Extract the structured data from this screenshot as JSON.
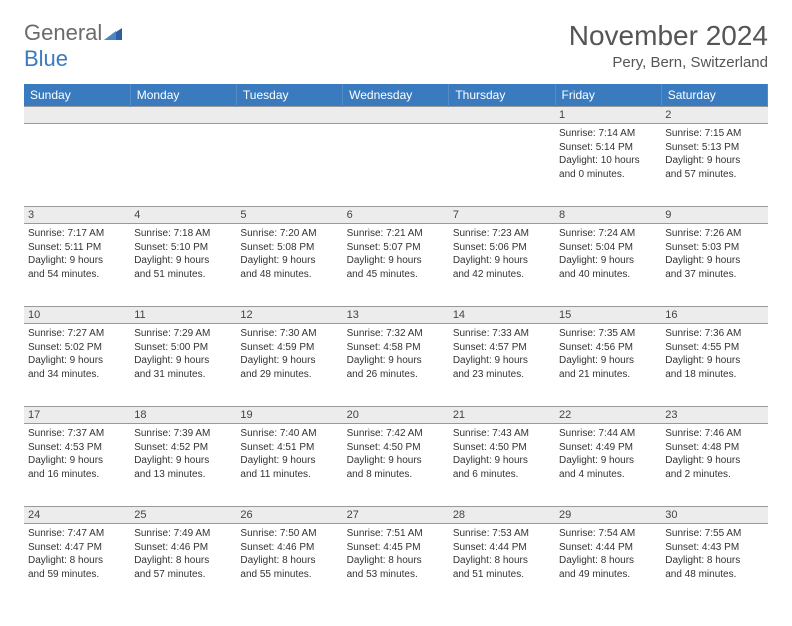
{
  "logo": {
    "word1": "General",
    "word2": "Blue"
  },
  "title": "November 2024",
  "location": "Pery, Bern, Switzerland",
  "colors": {
    "header_bg": "#3a7bbf",
    "header_fg": "#ffffff",
    "daynum_bg": "#ececec",
    "border": "#999999",
    "text": "#333333",
    "title": "#555555"
  },
  "day_headers": [
    "Sunday",
    "Monday",
    "Tuesday",
    "Wednesday",
    "Thursday",
    "Friday",
    "Saturday"
  ],
  "weeks": [
    [
      null,
      null,
      null,
      null,
      null,
      {
        "n": "1",
        "sr": "Sunrise: 7:14 AM",
        "ss": "Sunset: 5:14 PM",
        "dl1": "Daylight: 10 hours",
        "dl2": "and 0 minutes."
      },
      {
        "n": "2",
        "sr": "Sunrise: 7:15 AM",
        "ss": "Sunset: 5:13 PM",
        "dl1": "Daylight: 9 hours",
        "dl2": "and 57 minutes."
      }
    ],
    [
      {
        "n": "3",
        "sr": "Sunrise: 7:17 AM",
        "ss": "Sunset: 5:11 PM",
        "dl1": "Daylight: 9 hours",
        "dl2": "and 54 minutes."
      },
      {
        "n": "4",
        "sr": "Sunrise: 7:18 AM",
        "ss": "Sunset: 5:10 PM",
        "dl1": "Daylight: 9 hours",
        "dl2": "and 51 minutes."
      },
      {
        "n": "5",
        "sr": "Sunrise: 7:20 AM",
        "ss": "Sunset: 5:08 PM",
        "dl1": "Daylight: 9 hours",
        "dl2": "and 48 minutes."
      },
      {
        "n": "6",
        "sr": "Sunrise: 7:21 AM",
        "ss": "Sunset: 5:07 PM",
        "dl1": "Daylight: 9 hours",
        "dl2": "and 45 minutes."
      },
      {
        "n": "7",
        "sr": "Sunrise: 7:23 AM",
        "ss": "Sunset: 5:06 PM",
        "dl1": "Daylight: 9 hours",
        "dl2": "and 42 minutes."
      },
      {
        "n": "8",
        "sr": "Sunrise: 7:24 AM",
        "ss": "Sunset: 5:04 PM",
        "dl1": "Daylight: 9 hours",
        "dl2": "and 40 minutes."
      },
      {
        "n": "9",
        "sr": "Sunrise: 7:26 AM",
        "ss": "Sunset: 5:03 PM",
        "dl1": "Daylight: 9 hours",
        "dl2": "and 37 minutes."
      }
    ],
    [
      {
        "n": "10",
        "sr": "Sunrise: 7:27 AM",
        "ss": "Sunset: 5:02 PM",
        "dl1": "Daylight: 9 hours",
        "dl2": "and 34 minutes."
      },
      {
        "n": "11",
        "sr": "Sunrise: 7:29 AM",
        "ss": "Sunset: 5:00 PM",
        "dl1": "Daylight: 9 hours",
        "dl2": "and 31 minutes."
      },
      {
        "n": "12",
        "sr": "Sunrise: 7:30 AM",
        "ss": "Sunset: 4:59 PM",
        "dl1": "Daylight: 9 hours",
        "dl2": "and 29 minutes."
      },
      {
        "n": "13",
        "sr": "Sunrise: 7:32 AM",
        "ss": "Sunset: 4:58 PM",
        "dl1": "Daylight: 9 hours",
        "dl2": "and 26 minutes."
      },
      {
        "n": "14",
        "sr": "Sunrise: 7:33 AM",
        "ss": "Sunset: 4:57 PM",
        "dl1": "Daylight: 9 hours",
        "dl2": "and 23 minutes."
      },
      {
        "n": "15",
        "sr": "Sunrise: 7:35 AM",
        "ss": "Sunset: 4:56 PM",
        "dl1": "Daylight: 9 hours",
        "dl2": "and 21 minutes."
      },
      {
        "n": "16",
        "sr": "Sunrise: 7:36 AM",
        "ss": "Sunset: 4:55 PM",
        "dl1": "Daylight: 9 hours",
        "dl2": "and 18 minutes."
      }
    ],
    [
      {
        "n": "17",
        "sr": "Sunrise: 7:37 AM",
        "ss": "Sunset: 4:53 PM",
        "dl1": "Daylight: 9 hours",
        "dl2": "and 16 minutes."
      },
      {
        "n": "18",
        "sr": "Sunrise: 7:39 AM",
        "ss": "Sunset: 4:52 PM",
        "dl1": "Daylight: 9 hours",
        "dl2": "and 13 minutes."
      },
      {
        "n": "19",
        "sr": "Sunrise: 7:40 AM",
        "ss": "Sunset: 4:51 PM",
        "dl1": "Daylight: 9 hours",
        "dl2": "and 11 minutes."
      },
      {
        "n": "20",
        "sr": "Sunrise: 7:42 AM",
        "ss": "Sunset: 4:50 PM",
        "dl1": "Daylight: 9 hours",
        "dl2": "and 8 minutes."
      },
      {
        "n": "21",
        "sr": "Sunrise: 7:43 AM",
        "ss": "Sunset: 4:50 PM",
        "dl1": "Daylight: 9 hours",
        "dl2": "and 6 minutes."
      },
      {
        "n": "22",
        "sr": "Sunrise: 7:44 AM",
        "ss": "Sunset: 4:49 PM",
        "dl1": "Daylight: 9 hours",
        "dl2": "and 4 minutes."
      },
      {
        "n": "23",
        "sr": "Sunrise: 7:46 AM",
        "ss": "Sunset: 4:48 PM",
        "dl1": "Daylight: 9 hours",
        "dl2": "and 2 minutes."
      }
    ],
    [
      {
        "n": "24",
        "sr": "Sunrise: 7:47 AM",
        "ss": "Sunset: 4:47 PM",
        "dl1": "Daylight: 8 hours",
        "dl2": "and 59 minutes."
      },
      {
        "n": "25",
        "sr": "Sunrise: 7:49 AM",
        "ss": "Sunset: 4:46 PM",
        "dl1": "Daylight: 8 hours",
        "dl2": "and 57 minutes."
      },
      {
        "n": "26",
        "sr": "Sunrise: 7:50 AM",
        "ss": "Sunset: 4:46 PM",
        "dl1": "Daylight: 8 hours",
        "dl2": "and 55 minutes."
      },
      {
        "n": "27",
        "sr": "Sunrise: 7:51 AM",
        "ss": "Sunset: 4:45 PM",
        "dl1": "Daylight: 8 hours",
        "dl2": "and 53 minutes."
      },
      {
        "n": "28",
        "sr": "Sunrise: 7:53 AM",
        "ss": "Sunset: 4:44 PM",
        "dl1": "Daylight: 8 hours",
        "dl2": "and 51 minutes."
      },
      {
        "n": "29",
        "sr": "Sunrise: 7:54 AM",
        "ss": "Sunset: 4:44 PM",
        "dl1": "Daylight: 8 hours",
        "dl2": "and 49 minutes."
      },
      {
        "n": "30",
        "sr": "Sunrise: 7:55 AM",
        "ss": "Sunset: 4:43 PM",
        "dl1": "Daylight: 8 hours",
        "dl2": "and 48 minutes."
      }
    ]
  ]
}
